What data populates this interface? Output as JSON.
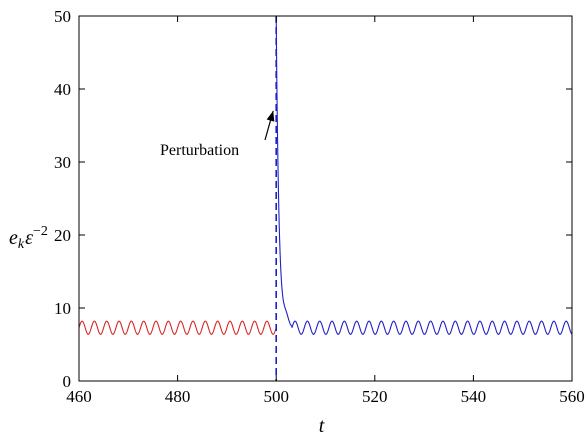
{
  "chart_data": {
    "type": "line",
    "title": "",
    "xlabel": "t",
    "ylabel_base": "e",
    "ylabel_sub": "k",
    "ylabel_eps": "ε",
    "ylabel_exp": "−2",
    "xlim": [
      460,
      560
    ],
    "ylim": [
      0,
      50
    ],
    "xticks": [
      460,
      480,
      500,
      520,
      540,
      560
    ],
    "yticks": [
      0,
      10,
      20,
      30,
      40,
      50
    ],
    "grid": false,
    "legend": "none",
    "series": [
      {
        "color": "#d62728",
        "kind": "oscillation",
        "x_start": 460,
        "x_end": 500,
        "mean": 7.3,
        "amplitude": 0.9,
        "period": 2.5
      },
      {
        "color": "#1f1fc8",
        "kind": "perturbation_decay",
        "x_start": 500,
        "x_end": 560,
        "peak": 50,
        "mean": 7.3,
        "amplitude": 0.9,
        "period": 2.5
      }
    ],
    "vline": {
      "x": 500,
      "color": "#1f1fc8",
      "style": "dashed"
    },
    "annotation": {
      "text": "Perturbation",
      "arrow_to": [
        500,
        37
      ]
    }
  }
}
